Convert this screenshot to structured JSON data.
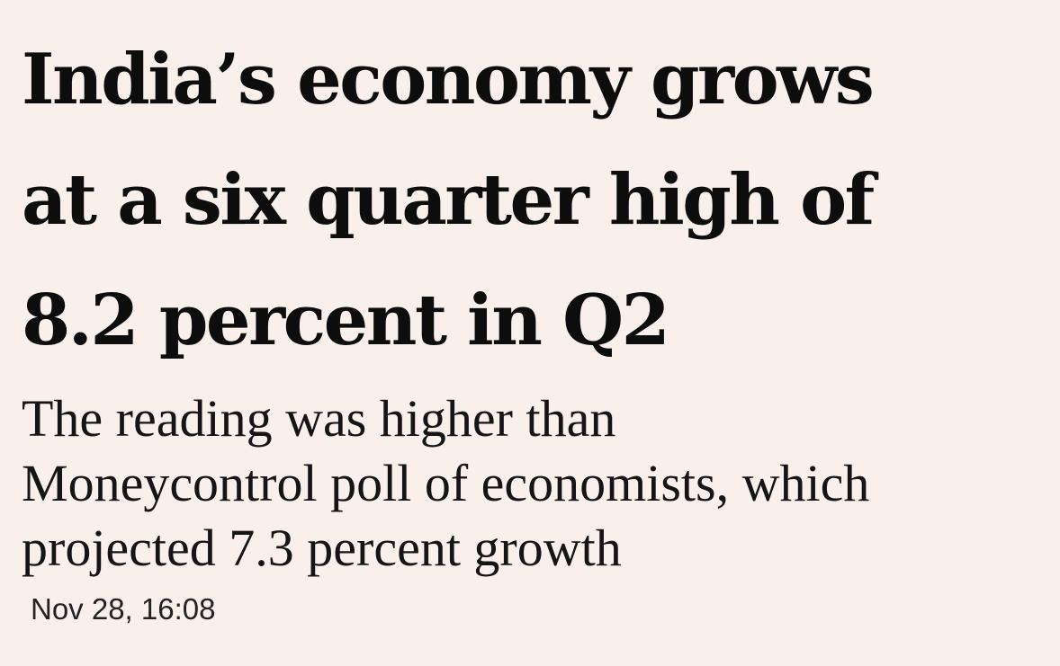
{
  "article": {
    "headline_lines": [
      "India’s economy grows",
      "at a six quarter high of",
      "8.2 percent in Q2"
    ],
    "summary_lines": [
      "The reading was higher than",
      "Moneycontrol poll of economists, which",
      "projected 7.3 percent growth"
    ],
    "timestamp": "Nov 28, 16:08"
  },
  "colors": {
    "background": "#f9f0ec",
    "text": "#111111"
  }
}
